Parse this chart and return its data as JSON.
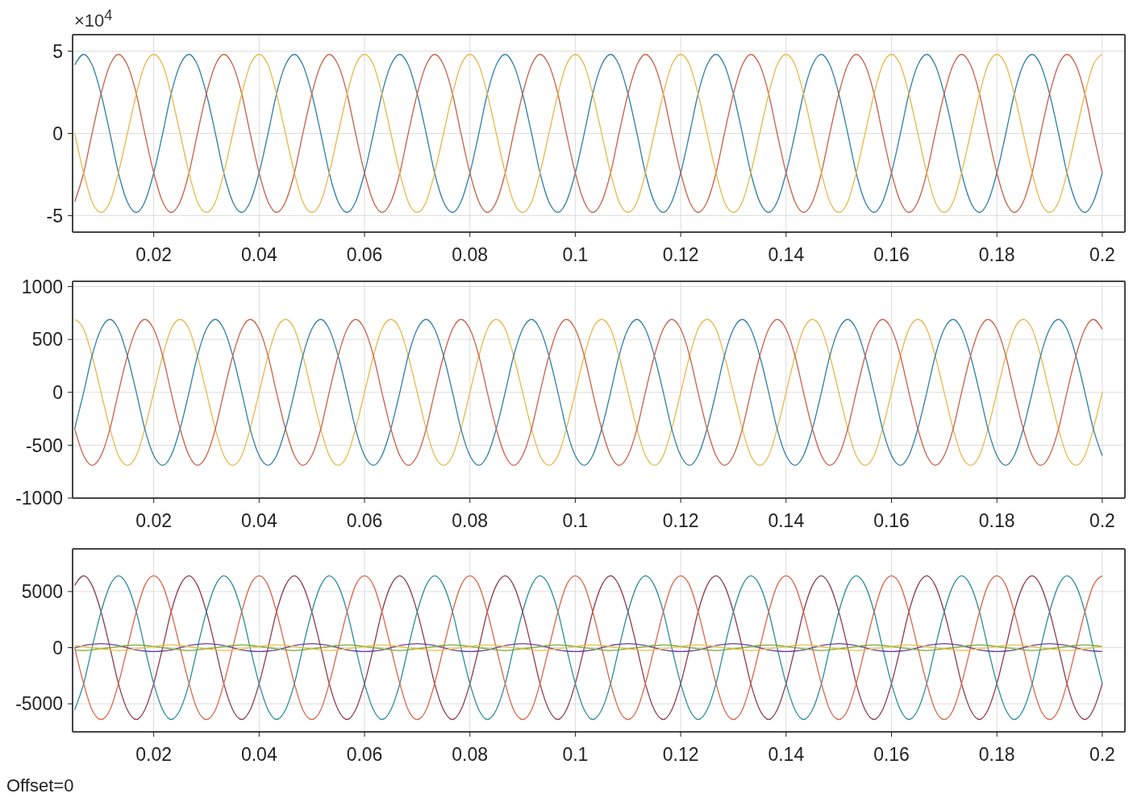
{
  "chart_data": [
    {
      "type": "line",
      "ylabel": "×10$^{4}$",
      "x": [
        0.005,
        0.0067,
        0.0083,
        0.01,
        0.0117,
        0.0133,
        0.015,
        0.0167,
        0.0183,
        0.02,
        0.0217,
        0.0233,
        0.025,
        0.0267,
        0.0283,
        0.03,
        0.0317,
        0.0333,
        0.035,
        0.0367,
        0.0383,
        0.04,
        0.0417,
        0.0433,
        0.045,
        0.0467,
        0.0483,
        0.05,
        0.0517,
        0.0533,
        0.055,
        0.0567,
        0.0583,
        0.06,
        0.0617,
        0.0633,
        0.065,
        0.0667,
        0.0683,
        0.07,
        0.0717,
        0.0733,
        0.075,
        0.0767,
        0.0783,
        0.08,
        0.0817,
        0.0833,
        0.085,
        0.0867,
        0.0883,
        0.09,
        0.0917,
        0.0933,
        0.095,
        0.0967,
        0.0983,
        0.1,
        0.1017,
        0.1033,
        0.105,
        0.1067,
        0.1083,
        0.11,
        0.1117,
        0.1133,
        0.115,
        0.1167,
        0.1183,
        0.12,
        0.1217,
        0.1233,
        0.125,
        0.1267,
        0.1283,
        0.13,
        0.1317,
        0.1333,
        0.135,
        0.1367,
        0.1383,
        0.14,
        0.1417,
        0.1433,
        0.145,
        0.1467,
        0.1483,
        0.15,
        0.1517,
        0.1533,
        0.155,
        0.1567,
        0.1583,
        0.16,
        0.1617,
        0.1633,
        0.165,
        0.1667,
        0.1683,
        0.17,
        0.1717,
        0.1733,
        0.175,
        0.1767,
        0.1783,
        0.18,
        0.1817,
        0.1833,
        0.185,
        0.1867,
        0.1883,
        0.19,
        0.1917,
        0.1933,
        0.195,
        0.1967,
        0.1983,
        0.2
      ],
      "xlim": [
        0.0046,
        0.2043
      ],
      "xticks": [
        0.02,
        0.04,
        0.06,
        0.08,
        0.1,
        0.12,
        0.14,
        0.16,
        0.18,
        0.2
      ],
      "ylim": [
        -6,
        6
      ],
      "yticks": [
        -5,
        0,
        5
      ],
      "grid": true,
      "line_style": "solid",
      "marker": "none",
      "series": [
        {
          "color": "#2f7fa8",
          "values": [
            4.16,
            4.8,
            4.16,
            2.4,
            0,
            -2.4,
            -4.16,
            -4.8,
            -4.16,
            -2.4,
            0,
            2.4,
            4.16,
            4.8,
            4.16,
            2.4,
            0,
            -2.4,
            -4.16,
            -4.8,
            -4.16,
            -2.4,
            0,
            2.4,
            4.16,
            4.8,
            4.16,
            2.4,
            0,
            -2.4,
            -4.16,
            -4.8,
            -4.16,
            -2.4,
            0,
            2.4,
            4.16,
            4.8,
            4.16,
            2.4,
            0,
            -2.4,
            -4.16,
            -4.8,
            -4.16,
            -2.4,
            0,
            2.4,
            4.16,
            4.8,
            4.16,
            2.4,
            0,
            -2.4,
            -4.16,
            -4.8,
            -4.16,
            -2.4,
            0,
            2.4,
            4.16,
            4.8,
            4.16,
            2.4,
            0,
            -2.4,
            -4.16,
            -4.8,
            -4.16,
            -2.4,
            0,
            2.4,
            4.16,
            4.8,
            4.16,
            2.4,
            0,
            -2.4,
            -4.16,
            -4.8,
            -4.16,
            -2.4,
            0,
            2.4,
            4.16,
            4.8,
            4.16,
            2.4,
            0,
            -2.4,
            -4.16,
            -4.8,
            -4.16,
            -2.4,
            0,
            2.4,
            4.16,
            4.8,
            4.16,
            2.4,
            0,
            -2.4,
            -4.16,
            -4.8,
            -4.16,
            -2.4,
            0,
            2.4,
            4.16,
            4.8,
            4.16,
            2.4,
            0,
            -2.4,
            -4.16,
            -4.8,
            -4.16,
            -2.4
          ]
        },
        {
          "color": "#c8614a",
          "values": [
            -4.16,
            -2.4,
            0,
            2.4,
            4.16,
            4.8,
            4.16,
            2.4,
            0,
            -2.4,
            -4.16,
            -4.8,
            -4.16,
            -2.4,
            0,
            2.4,
            4.16,
            4.8,
            4.16,
            2.4,
            0,
            -2.4,
            -4.16,
            -4.8,
            -4.16,
            -2.4,
            0,
            2.4,
            4.16,
            4.8,
            4.16,
            2.4,
            0,
            -2.4,
            -4.16,
            -4.8,
            -4.16,
            -2.4,
            0,
            2.4,
            4.16,
            4.8,
            4.16,
            2.4,
            0,
            -2.4,
            -4.16,
            -4.8,
            -4.16,
            -2.4,
            0,
            2.4,
            4.16,
            4.8,
            4.16,
            2.4,
            0,
            -2.4,
            -4.16,
            -4.8,
            -4.16,
            -2.4,
            0,
            2.4,
            4.16,
            4.8,
            4.16,
            2.4,
            0,
            -2.4,
            -4.16,
            -4.8,
            -4.16,
            -2.4,
            0,
            2.4,
            4.16,
            4.8,
            4.16,
            2.4,
            0,
            -2.4,
            -4.16,
            -4.8,
            -4.16,
            -2.4,
            0,
            2.4,
            4.16,
            4.8,
            4.16,
            2.4,
            0,
            -2.4,
            -4.16,
            -4.8,
            -4.16,
            -2.4,
            0,
            2.4,
            4.16,
            4.8,
            4.16,
            2.4,
            0,
            -2.4,
            -4.16,
            -4.8,
            -4.16,
            -2.4,
            0,
            2.4,
            4.16,
            4.8,
            4.16,
            2.4,
            0,
            -2.4
          ]
        },
        {
          "color": "#e8b84a",
          "values": [
            0,
            -2.4,
            -4.16,
            -4.8,
            -4.16,
            -2.4,
            0,
            2.4,
            4.16,
            4.8,
            4.16,
            2.4,
            0,
            -2.4,
            -4.16,
            -4.8,
            -4.16,
            -2.4,
            0,
            2.4,
            4.16,
            4.8,
            4.16,
            2.4,
            0,
            -2.4,
            -4.16,
            -4.8,
            -4.16,
            -2.4,
            0,
            2.4,
            4.16,
            4.8,
            4.16,
            2.4,
            0,
            -2.4,
            -4.16,
            -4.8,
            -4.16,
            -2.4,
            0,
            2.4,
            4.16,
            4.8,
            4.16,
            2.4,
            0,
            -2.4,
            -4.16,
            -4.8,
            -4.16,
            -2.4,
            0,
            2.4,
            4.16,
            4.8,
            4.16,
            2.4,
            0,
            -2.4,
            -4.16,
            -4.8,
            -4.16,
            -2.4,
            0,
            2.4,
            4.16,
            4.8,
            4.16,
            2.4,
            0,
            -2.4,
            -4.16,
            -4.8,
            -4.16,
            -2.4,
            0,
            2.4,
            4.16,
            4.8,
            4.16,
            2.4,
            0,
            -2.4,
            -4.16,
            -4.8,
            -4.16,
            -2.4,
            0,
            2.4,
            4.16,
            4.8,
            4.16,
            2.4,
            0,
            -2.4,
            -4.16,
            -4.8,
            -4.16,
            -2.4,
            0,
            2.4,
            4.16,
            4.8,
            4.16,
            2.4,
            0,
            -2.4,
            -4.16,
            -4.8,
            -4.16,
            -2.4,
            0,
            2.4,
            4.16,
            4.8
          ]
        }
      ]
    },
    {
      "type": "line",
      "x": [
        0.005,
        0.0067,
        0.0083,
        0.01,
        0.0117,
        0.0133,
        0.015,
        0.0167,
        0.0183,
        0.02,
        0.0217,
        0.0233,
        0.025,
        0.0267,
        0.0283,
        0.03,
        0.0317,
        0.0333,
        0.035,
        0.0367,
        0.0383,
        0.04,
        0.0417,
        0.0433,
        0.045,
        0.0467,
        0.0483,
        0.05,
        0.0517,
        0.0533,
        0.055,
        0.0567,
        0.0583,
        0.06,
        0.0617,
        0.0633,
        0.065,
        0.0667,
        0.0683,
        0.07,
        0.0717,
        0.0733,
        0.075,
        0.0767,
        0.0783,
        0.08,
        0.0817,
        0.0833,
        0.085,
        0.0867,
        0.0883,
        0.09,
        0.0917,
        0.0933,
        0.095,
        0.0967,
        0.0983,
        0.1,
        0.1017,
        0.1033,
        0.105,
        0.1067,
        0.1083,
        0.11,
        0.1117,
        0.1133,
        0.115,
        0.1167,
        0.1183,
        0.12,
        0.1217,
        0.1233,
        0.125,
        0.1267,
        0.1283,
        0.13,
        0.1317,
        0.1333,
        0.135,
        0.1367,
        0.1383,
        0.14,
        0.1417,
        0.1433,
        0.145,
        0.1467,
        0.1483,
        0.15,
        0.1517,
        0.1533,
        0.155,
        0.1567,
        0.1583,
        0.16,
        0.1617,
        0.1633,
        0.165,
        0.1667,
        0.1683,
        0.17,
        0.1717,
        0.1733,
        0.175,
        0.1767,
        0.1783,
        0.18,
        0.1817,
        0.1833,
        0.185,
        0.1867,
        0.1883,
        0.19,
        0.1917,
        0.1933,
        0.195,
        0.1967,
        0.1983,
        0.2
      ],
      "xlim": [
        0.0046,
        0.2043
      ],
      "xticks": [
        0.02,
        0.04,
        0.06,
        0.08,
        0.1,
        0.12,
        0.14,
        0.16,
        0.18,
        0.2
      ],
      "ylim": [
        -1000,
        1050
      ],
      "yticks": [
        -1000,
        -500,
        0,
        500,
        1000
      ],
      "grid": true,
      "line_style": "solid",
      "marker": "none",
      "series": [
        {
          "color": "#e8b84a",
          "values": [
            690,
            598,
            345,
            0,
            -345,
            -598,
            -690,
            -598,
            -345,
            0,
            345,
            598,
            690,
            598,
            345,
            0,
            -345,
            -598,
            -690,
            -598,
            -345,
            0,
            345,
            598,
            690,
            598,
            345,
            0,
            -345,
            -598,
            -690,
            -598,
            -345,
            0,
            345,
            598,
            690,
            598,
            345,
            0,
            -345,
            -598,
            -690,
            -598,
            -345,
            0,
            345,
            598,
            690,
            598,
            345,
            0,
            -345,
            -598,
            -690,
            -598,
            -345,
            0,
            345,
            598,
            690,
            598,
            345,
            0,
            -345,
            -598,
            -690,
            -598,
            -345,
            0,
            345,
            598,
            690,
            598,
            345,
            0,
            -345,
            -598,
            -690,
            -598,
            -345,
            0,
            345,
            598,
            690,
            598,
            345,
            0,
            -345,
            -598,
            -690,
            -598,
            -345,
            0,
            345,
            598,
            690,
            598,
            345,
            0,
            -345,
            -598,
            -690,
            -598,
            -345,
            0,
            345,
            598,
            690,
            598,
            345,
            0,
            -345,
            -598,
            -690,
            -598,
            -345,
            0
          ]
        },
        {
          "color": "#2f7fa8",
          "values": [
            -345,
            0,
            345,
            598,
            690,
            598,
            345,
            0,
            -345,
            -598,
            -690,
            -598,
            -345,
            0,
            345,
            598,
            690,
            598,
            345,
            0,
            -345,
            -598,
            -690,
            -598,
            -345,
            0,
            345,
            598,
            690,
            598,
            345,
            0,
            -345,
            -598,
            -690,
            -598,
            -345,
            0,
            345,
            598,
            690,
            598,
            345,
            0,
            -345,
            -598,
            -690,
            -598,
            -345,
            0,
            345,
            598,
            690,
            598,
            345,
            0,
            -345,
            -598,
            -690,
            -598,
            -345,
            0,
            345,
            598,
            690,
            598,
            345,
            0,
            -345,
            -598,
            -690,
            -598,
            -345,
            0,
            345,
            598,
            690,
            598,
            345,
            0,
            -345,
            -598,
            -690,
            -598,
            -345,
            0,
            345,
            598,
            690,
            598,
            345,
            0,
            -345,
            -598,
            -690,
            -598,
            -345,
            0,
            345,
            598,
            690,
            598,
            345,
            0,
            -345,
            -598,
            -690,
            -598,
            -345,
            0,
            345,
            598,
            690,
            598,
            345,
            0,
            -345,
            -598
          ]
        },
        {
          "color": "#c8614a",
          "values": [
            -345,
            -598,
            -690,
            -598,
            -345,
            0,
            345,
            598,
            690,
            598,
            345,
            0,
            -345,
            -598,
            -690,
            -598,
            -345,
            0,
            345,
            598,
            690,
            598,
            345,
            0,
            -345,
            -598,
            -690,
            -598,
            -345,
            0,
            345,
            598,
            690,
            598,
            345,
            0,
            -345,
            -598,
            -690,
            -598,
            -345,
            0,
            345,
            598,
            690,
            598,
            345,
            0,
            -345,
            -598,
            -690,
            -598,
            -345,
            0,
            345,
            598,
            690,
            598,
            345,
            0,
            -345,
            -598,
            -690,
            -598,
            -345,
            0,
            345,
            598,
            690,
            598,
            345,
            0,
            -345,
            -598,
            -690,
            -598,
            -345,
            0,
            345,
            598,
            690,
            598,
            345,
            0,
            -345,
            -598,
            -690,
            -598,
            -345,
            0,
            345,
            598,
            690,
            598,
            345,
            0,
            -345,
            -598,
            -690,
            -598,
            -345,
            0,
            345,
            598,
            690,
            598,
            345,
            0,
            -345,
            -598,
            -690,
            -598,
            -345,
            0,
            345,
            598,
            690,
            598
          ]
        }
      ]
    },
    {
      "type": "line",
      "annotations": [
        "Offset=0"
      ],
      "x": [
        0.005,
        0.0067,
        0.0083,
        0.01,
        0.0117,
        0.0133,
        0.015,
        0.0167,
        0.0183,
        0.02,
        0.0217,
        0.0233,
        0.025,
        0.0267,
        0.0283,
        0.03,
        0.0317,
        0.0333,
        0.035,
        0.0367,
        0.0383,
        0.04,
        0.0417,
        0.0433,
        0.045,
        0.0467,
        0.0483,
        0.05,
        0.0517,
        0.0533,
        0.055,
        0.0567,
        0.0583,
        0.06,
        0.0617,
        0.0633,
        0.065,
        0.0667,
        0.0683,
        0.07,
        0.0717,
        0.0733,
        0.075,
        0.0767,
        0.0783,
        0.08,
        0.0817,
        0.0833,
        0.085,
        0.0867,
        0.0883,
        0.09,
        0.0917,
        0.0933,
        0.095,
        0.0967,
        0.0983,
        0.1,
        0.1017,
        0.1033,
        0.105,
        0.1067,
        0.1083,
        0.11,
        0.1117,
        0.1133,
        0.115,
        0.1167,
        0.1183,
        0.12,
        0.1217,
        0.1233,
        0.125,
        0.1267,
        0.1283,
        0.13,
        0.1317,
        0.1333,
        0.135,
        0.1367,
        0.1383,
        0.14,
        0.1417,
        0.1433,
        0.145,
        0.1467,
        0.1483,
        0.15,
        0.1517,
        0.1533,
        0.155,
        0.1567,
        0.1583,
        0.16,
        0.1617,
        0.1633,
        0.165,
        0.1667,
        0.1683,
        0.17,
        0.1717,
        0.1733,
        0.175,
        0.1767,
        0.1783,
        0.18,
        0.1817,
        0.1833,
        0.185,
        0.1867,
        0.1883,
        0.19,
        0.1917,
        0.1933,
        0.195,
        0.1967,
        0.1983,
        0.2
      ],
      "xlim": [
        0.0046,
        0.2043
      ],
      "xticks": [
        0.02,
        0.04,
        0.06,
        0.08,
        0.1,
        0.12,
        0.14,
        0.16,
        0.18,
        0.2
      ],
      "ylim": [
        -7500,
        8800
      ],
      "yticks": [
        -5000,
        0,
        5000
      ],
      "grid": true,
      "line_style": "solid",
      "marker": "none",
      "series": [
        {
          "color": "#8c3b4f",
          "values": [
            5540,
            6400,
            5540,
            3200,
            0,
            -3200,
            -5540,
            -6400,
            -5540,
            -3200,
            0,
            3200,
            5540,
            6400,
            5540,
            3200,
            0,
            -3200,
            -5540,
            -6400,
            -5540,
            -3200,
            0,
            3200,
            5540,
            6400,
            5540,
            3200,
            0,
            -3200,
            -5540,
            -6400,
            -5540,
            -3200,
            0,
            3200,
            5540,
            6400,
            5540,
            3200,
            0,
            -3200,
            -5540,
            -6400,
            -5540,
            -3200,
            0,
            3200,
            5540,
            6400,
            5540,
            3200,
            0,
            -3200,
            -5540,
            -6400,
            -5540,
            -3200,
            0,
            3200,
            5540,
            6400,
            5540,
            3200,
            0,
            -3200,
            -5540,
            -6400,
            -5540,
            -3200,
            0,
            3200,
            5540,
            6400,
            5540,
            3200,
            0,
            -3200,
            -5540,
            -6400,
            -5540,
            -3200,
            0,
            3200,
            5540,
            6400,
            5540,
            3200,
            0,
            -3200,
            -5540,
            -6400,
            -5540,
            -3200,
            0,
            3200,
            5540,
            6400,
            5540,
            3200,
            0,
            -3200,
            -5540,
            -6400,
            -5540,
            -3200,
            0,
            3200,
            5540,
            6400,
            5540,
            3200,
            0,
            -3200,
            -5540,
            -6400,
            -5540,
            -3200
          ]
        },
        {
          "color": "#2b8c9c",
          "values": [
            -5540,
            -3200,
            0,
            3200,
            5540,
            6400,
            5540,
            3200,
            0,
            -3200,
            -5540,
            -6400,
            -5540,
            -3200,
            0,
            3200,
            5540,
            6400,
            5540,
            3200,
            0,
            -3200,
            -5540,
            -6400,
            -5540,
            -3200,
            0,
            3200,
            5540,
            6400,
            5540,
            3200,
            0,
            -3200,
            -5540,
            -6400,
            -5540,
            -3200,
            0,
            3200,
            5540,
            6400,
            5540,
            3200,
            0,
            -3200,
            -5540,
            -6400,
            -5540,
            -3200,
            0,
            3200,
            5540,
            6400,
            5540,
            3200,
            0,
            -3200,
            -5540,
            -6400,
            -5540,
            -3200,
            0,
            3200,
            5540,
            6400,
            5540,
            3200,
            0,
            -3200,
            -5540,
            -6400,
            -5540,
            -3200,
            0,
            3200,
            5540,
            6400,
            5540,
            3200,
            0,
            -3200,
            -5540,
            -6400,
            -5540,
            -3200,
            0,
            3200,
            5540,
            6400,
            5540,
            3200,
            0,
            -3200,
            -5540,
            -6400,
            -5540,
            -3200,
            0,
            3200,
            5540,
            6400,
            5540,
            3200,
            0,
            -3200,
            -5540,
            -6400,
            -5540,
            -3200,
            0,
            3200,
            5540,
            6400,
            5540,
            3200,
            0,
            -3200
          ]
        },
        {
          "color": "#d9664a",
          "values": [
            0,
            -3200,
            -5540,
            -6400,
            -5540,
            -3200,
            0,
            3200,
            5540,
            6400,
            5540,
            3200,
            0,
            -3200,
            -5540,
            -6400,
            -5540,
            -3200,
            0,
            3200,
            5540,
            6400,
            5540,
            3200,
            0,
            -3200,
            -5540,
            -6400,
            -5540,
            -3200,
            0,
            3200,
            5540,
            6400,
            5540,
            3200,
            0,
            -3200,
            -5540,
            -6400,
            -5540,
            -3200,
            0,
            3200,
            5540,
            6400,
            5540,
            3200,
            0,
            -3200,
            -5540,
            -6400,
            -5540,
            -3200,
            0,
            3200,
            5540,
            6400,
            5540,
            3200,
            0,
            -3200,
            -5540,
            -6400,
            -5540,
            -3200,
            0,
            3200,
            5540,
            6400,
            5540,
            3200,
            0,
            -3200,
            -5540,
            -6400,
            -5540,
            -3200,
            0,
            3200,
            5540,
            6400,
            5540,
            3200,
            0,
            -3200,
            -5540,
            -6400,
            -5540,
            -3200,
            0,
            3200,
            5540,
            6400,
            5540,
            3200,
            0,
            -3200,
            -5540,
            -6400,
            -5540,
            -3200,
            0,
            3200,
            5540,
            6400,
            5540,
            3200,
            0,
            -3200,
            -5540,
            -6400,
            -5540,
            -3200,
            0,
            3200,
            5540,
            6400
          ]
        },
        {
          "color": "#6b3fa0",
          "values": [
            0,
            200,
            300,
            350,
            300,
            200,
            0,
            -200,
            -300,
            -350,
            -300,
            -200,
            0,
            200,
            300,
            350,
            300,
            200,
            0,
            -200,
            -300,
            -350,
            -300,
            -200,
            0,
            200,
            300,
            350,
            300,
            200,
            0,
            -200,
            -300,
            -350,
            -300,
            -200,
            0,
            200,
            300,
            350,
            300,
            200,
            0,
            -200,
            -300,
            -350,
            -300,
            -200,
            0,
            200,
            300,
            350,
            300,
            200,
            0,
            -200,
            -300,
            -350,
            -300,
            -200,
            0,
            200,
            300,
            350,
            300,
            200,
            0,
            -200,
            -300,
            -350,
            -300,
            -200,
            0,
            200,
            300,
            350,
            300,
            200,
            0,
            -200,
            -300,
            -350,
            -300,
            -200,
            0,
            200,
            300,
            350,
            300,
            200,
            0,
            -200,
            -300,
            -350,
            -300,
            -200,
            0,
            200,
            300,
            350,
            300,
            200,
            0,
            -200,
            -300,
            -350,
            -300,
            -200,
            0,
            200,
            300,
            350,
            300,
            200,
            0,
            -200,
            -300,
            -350
          ]
        },
        {
          "color": "#77ac30",
          "values": [
            -200,
            -250,
            -200,
            -100,
            0,
            100,
            200,
            250,
            200,
            100,
            0,
            -100,
            -200,
            -250,
            -200,
            -100,
            0,
            100,
            200,
            250,
            200,
            100,
            0,
            -100,
            -200,
            -250,
            -200,
            -100,
            0,
            100,
            200,
            250,
            200,
            100,
            0,
            -100,
            -200,
            -250,
            -200,
            -100,
            0,
            100,
            200,
            250,
            200,
            100,
            0,
            -100,
            -200,
            -250,
            -200,
            -100,
            0,
            100,
            200,
            250,
            200,
            100,
            0,
            -100,
            -200,
            -250,
            -200,
            -100,
            0,
            100,
            200,
            250,
            200,
            100,
            0,
            -100,
            -200,
            -250,
            -200,
            -100,
            0,
            100,
            200,
            250,
            200,
            100,
            0,
            -100,
            -200,
            -250,
            -200,
            -100,
            0,
            100,
            200,
            250,
            200,
            100,
            0,
            -100,
            -200,
            -250,
            -200,
            -100,
            0,
            100,
            200,
            250,
            200,
            100,
            0,
            -100,
            -200,
            -250,
            -200,
            -100,
            0,
            100,
            200,
            250,
            200,
            100
          ]
        },
        {
          "color": "#e8c040",
          "values": [
            200,
            100,
            0,
            -100,
            -200,
            -250,
            -200,
            -100,
            0,
            100,
            200,
            250,
            200,
            100,
            0,
            -100,
            -200,
            -250,
            -200,
            -100,
            0,
            100,
            200,
            250,
            200,
            100,
            0,
            -100,
            -200,
            -250,
            -200,
            -100,
            0,
            100,
            200,
            250,
            200,
            100,
            0,
            -100,
            -200,
            -250,
            -200,
            -100,
            0,
            100,
            200,
            250,
            200,
            100,
            0,
            -100,
            -200,
            -250,
            -200,
            -100,
            0,
            100,
            200,
            250,
            200,
            100,
            0,
            -100,
            -200,
            -250,
            -200,
            -100,
            0,
            100,
            200,
            250,
            200,
            100,
            0,
            -100,
            -200,
            -250,
            -200,
            -100,
            0,
            100,
            200,
            250,
            200,
            100,
            0,
            -100,
            -200,
            -250,
            -200,
            -100,
            0,
            100,
            200,
            250,
            200,
            100,
            0,
            -100,
            -200,
            -250,
            -200,
            -100,
            0,
            100,
            200,
            250,
            200,
            100,
            0,
            -100,
            -200,
            -250,
            -200,
            -100,
            0,
            100
          ]
        }
      ]
    }
  ]
}
